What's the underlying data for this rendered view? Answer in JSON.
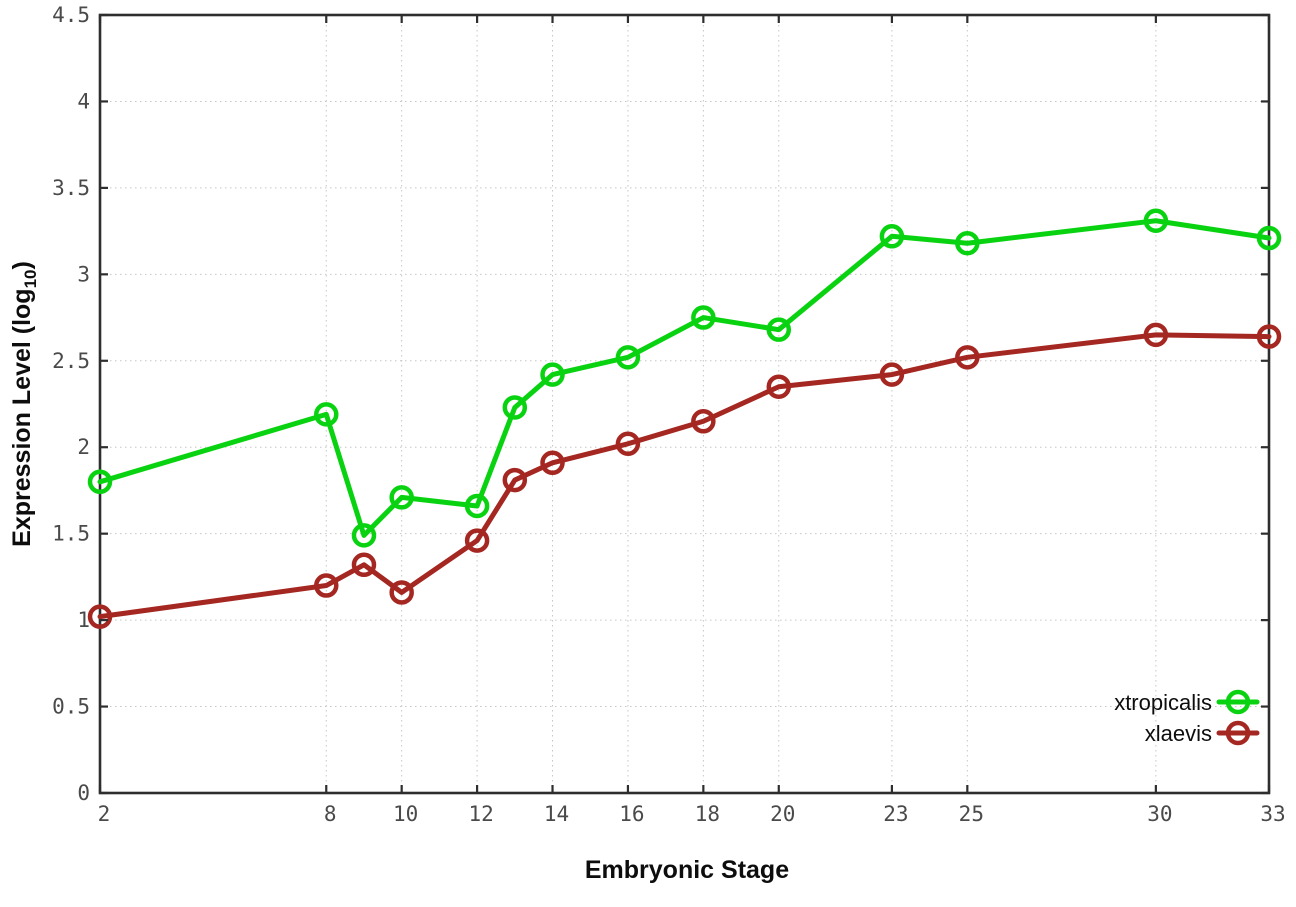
{
  "chart_data": {
    "type": "line",
    "title": "",
    "xlabel": "Embryonic Stage",
    "ylabel": "Expression Level (log10)",
    "ylabel_parts": {
      "prefix": "Expression Level (log",
      "sub": "10",
      "suffix": ")"
    },
    "x": [
      2,
      8,
      9,
      10,
      12,
      13,
      14,
      16,
      18,
      20,
      23,
      25,
      30,
      33
    ],
    "series": [
      {
        "name": "xtropicalis",
        "color": "#09d311",
        "values": [
          1.8,
          2.19,
          1.49,
          1.71,
          1.66,
          2.23,
          2.42,
          2.52,
          2.75,
          2.68,
          3.22,
          3.18,
          3.31,
          3.21
        ]
      },
      {
        "name": "xlaevis",
        "color": "#a52721",
        "values": [
          1.02,
          1.2,
          1.32,
          1.16,
          1.46,
          1.81,
          1.91,
          2.02,
          2.15,
          2.35,
          2.42,
          2.52,
          2.65,
          2.64
        ]
      }
    ],
    "xticks": [
      2,
      8,
      10,
      12,
      14,
      16,
      18,
      20,
      23,
      25,
      30,
      33
    ],
    "yticks": [
      0,
      0.5,
      1,
      1.5,
      2,
      2.5,
      3,
      3.5,
      4,
      4.5
    ],
    "xlim": [
      2,
      33
    ],
    "ylim": [
      0,
      4.5
    ],
    "grid": true,
    "legend_position": "bottom-right",
    "legend": [
      "xtropicalis",
      "xlaevis"
    ],
    "colors": {
      "grid": "#c6c6c6",
      "axis": "#2e2e2e",
      "tick_label": "#4a4a4a",
      "text": "#0d0d0d",
      "background": "#ffffff"
    }
  }
}
